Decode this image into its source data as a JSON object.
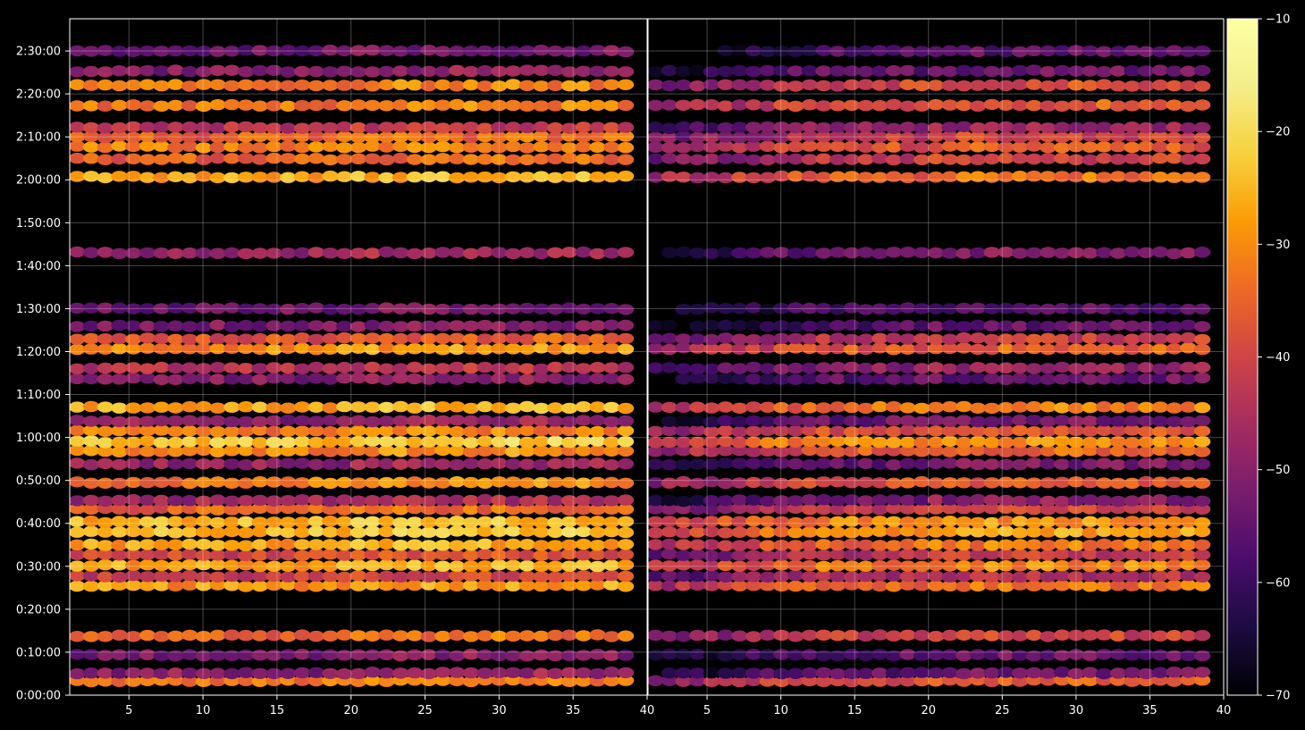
{
  "chart_data": [
    {
      "type": "heatmap",
      "panel": "left",
      "xlim": [
        1,
        40
      ],
      "ylim": [
        0,
        9450
      ],
      "x_ticks": [
        "5",
        "10",
        "15",
        "20",
        "25",
        "30",
        "35",
        "40"
      ],
      "x_tick_values": [
        5,
        10,
        15,
        20,
        25,
        30,
        35,
        40
      ],
      "y_ticks": [
        "0:00:00",
        "0:10:00",
        "0:20:00",
        "0:30:00",
        "0:40:00",
        "0:50:00",
        "1:00:00",
        "1:10:00",
        "1:20:00",
        "1:30:00",
        "1:40:00",
        "1:50:00",
        "2:00:00",
        "2:10:00",
        "2:20:00",
        "2:30:00"
      ],
      "y_tick_values": [
        0,
        600,
        1200,
        1800,
        2400,
        3000,
        3600,
        4200,
        4800,
        5400,
        6000,
        6600,
        7200,
        7800,
        8400,
        9000
      ],
      "grid": true,
      "colormap": "inferno",
      "bands": [
        {
          "t": 200,
          "v": -33
        },
        {
          "t": 310,
          "v": -50
        },
        {
          "t": 560,
          "v": -52
        },
        {
          "t": 830,
          "v": -35
        },
        {
          "t": 1530,
          "v": -29
        },
        {
          "t": 1660,
          "v": -42
        },
        {
          "t": 1810,
          "v": -27
        },
        {
          "t": 1960,
          "v": -40
        },
        {
          "t": 2100,
          "v": -28
        },
        {
          "t": 2280,
          "v": -24
        },
        {
          "t": 2420,
          "v": -26
        },
        {
          "t": 2600,
          "v": -36
        },
        {
          "t": 2720,
          "v": -47
        },
        {
          "t": 2970,
          "v": -32
        },
        {
          "t": 3230,
          "v": -49
        },
        {
          "t": 3410,
          "v": -31
        },
        {
          "t": 3540,
          "v": -24
        },
        {
          "t": 3690,
          "v": -33
        },
        {
          "t": 3830,
          "v": -50
        },
        {
          "t": 4020,
          "v": -27
        },
        {
          "t": 4420,
          "v": -51
        },
        {
          "t": 4570,
          "v": -45
        },
        {
          "t": 4840,
          "v": -30
        },
        {
          "t": 4980,
          "v": -38
        },
        {
          "t": 5160,
          "v": -52
        },
        {
          "t": 5400,
          "v": -54
        },
        {
          "t": 6180,
          "v": -48
        },
        {
          "t": 7240,
          "v": -27
        },
        {
          "t": 7490,
          "v": -36
        },
        {
          "t": 7660,
          "v": -32
        },
        {
          "t": 7800,
          "v": -36
        },
        {
          "t": 7930,
          "v": -44
        },
        {
          "t": 8240,
          "v": -33
        },
        {
          "t": 8520,
          "v": -33
        },
        {
          "t": 8720,
          "v": -51
        },
        {
          "t": 9000,
          "v": -54
        }
      ]
    },
    {
      "type": "heatmap",
      "panel": "right",
      "xlim": [
        1,
        40
      ],
      "ylim": [
        0,
        9450
      ],
      "x_ticks": [
        "5",
        "10",
        "15",
        "20",
        "25",
        "30",
        "35",
        "40"
      ],
      "x_tick_values": [
        5,
        10,
        15,
        20,
        25,
        30,
        35,
        40
      ],
      "y_ticks": [],
      "grid": true,
      "colormap": "inferno",
      "bands": [
        {
          "t": 200,
          "v": -38
        },
        {
          "t": 310,
          "v": -55
        },
        {
          "t": 560,
          "v": -56
        },
        {
          "t": 830,
          "v": -42
        },
        {
          "t": 1530,
          "v": -35
        },
        {
          "t": 1660,
          "v": -46
        },
        {
          "t": 1810,
          "v": -33
        },
        {
          "t": 1960,
          "v": -44
        },
        {
          "t": 2100,
          "v": -34
        },
        {
          "t": 2280,
          "v": -30
        },
        {
          "t": 2420,
          "v": -31
        },
        {
          "t": 2600,
          "v": -42
        },
        {
          "t": 2720,
          "v": -52
        },
        {
          "t": 2970,
          "v": -38
        },
        {
          "t": 3230,
          "v": -54
        },
        {
          "t": 3410,
          "v": -37
        },
        {
          "t": 3540,
          "v": -30
        },
        {
          "t": 3690,
          "v": -38
        },
        {
          "t": 3830,
          "v": -54
        },
        {
          "t": 4020,
          "v": -33
        },
        {
          "t": 4420,
          "v": -56
        },
        {
          "t": 4570,
          "v": -50
        },
        {
          "t": 4840,
          "v": -37
        },
        {
          "t": 4980,
          "v": -43
        },
        {
          "t": 5160,
          "v": -57
        },
        {
          "t": 5400,
          "v": -58
        },
        {
          "t": 6180,
          "v": -53
        },
        {
          "t": 7240,
          "v": -35
        },
        {
          "t": 7490,
          "v": -42
        },
        {
          "t": 7660,
          "v": -38
        },
        {
          "t": 7800,
          "v": -42
        },
        {
          "t": 7930,
          "v": -50
        },
        {
          "t": 8240,
          "v": -38
        },
        {
          "t": 8520,
          "v": -40
        },
        {
          "t": 8720,
          "v": -55
        },
        {
          "t": 9000,
          "v": -58
        }
      ]
    }
  ],
  "colorbar": {
    "range": [
      -70,
      -10
    ],
    "ticks": [
      "−10",
      "−20",
      "−30",
      "−40",
      "−50",
      "−60",
      "−70"
    ],
    "tick_values": [
      -10,
      -20,
      -30,
      -40,
      -50,
      -60,
      -70
    ]
  }
}
